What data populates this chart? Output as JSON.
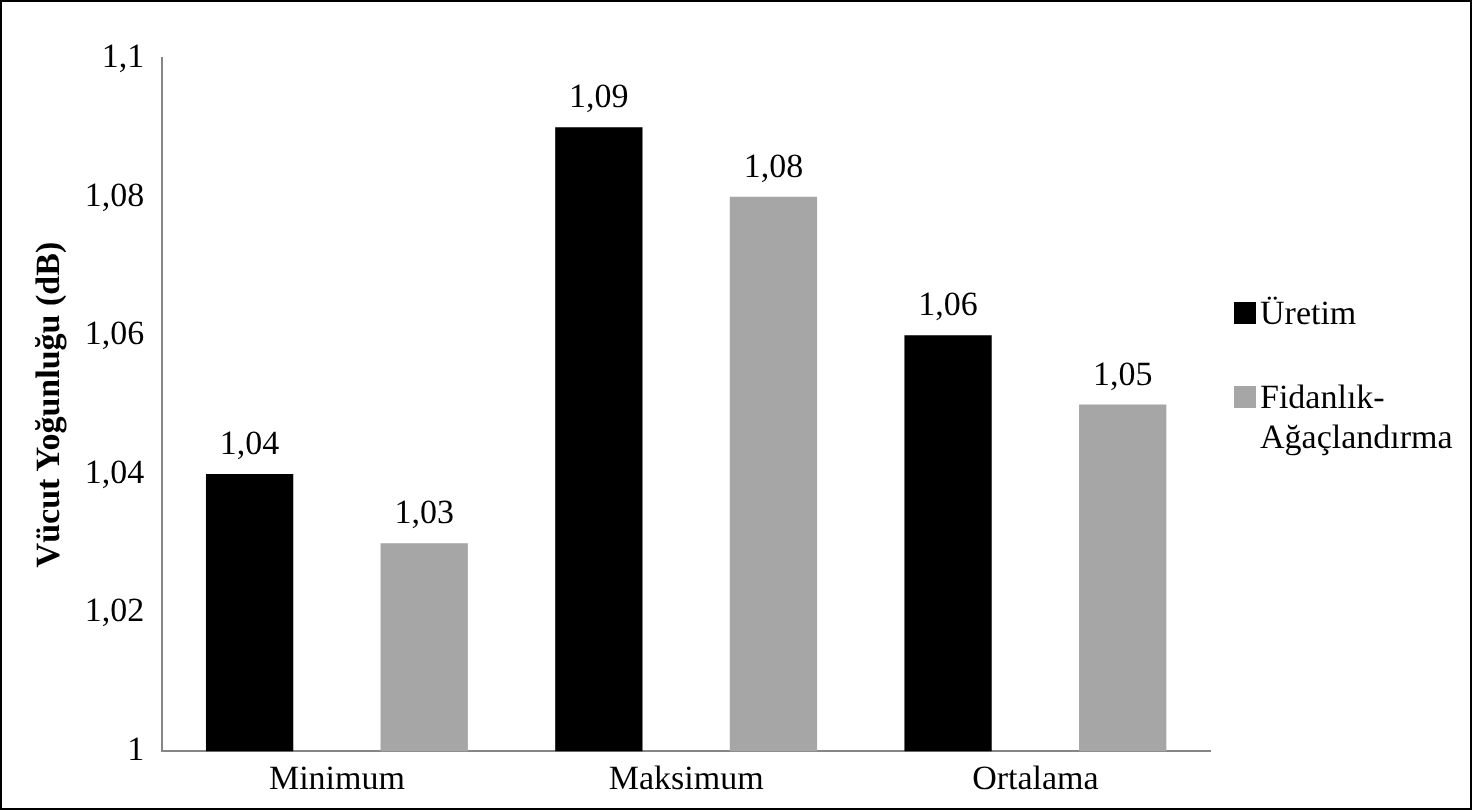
{
  "chart_data": {
    "type": "bar",
    "ylabel": "Vücut Yoğunluğu (dB)",
    "categories": [
      "Minimum",
      "Maksimum",
      "Ortalama"
    ],
    "series": [
      {
        "name": "Üretim",
        "color": "#000000",
        "values": [
          1.04,
          1.09,
          1.06
        ],
        "value_labels": [
          "1,04",
          "1,09",
          "1,06"
        ]
      },
      {
        "name": "Fidanlık-Ağaçlandırma",
        "color": "#a6a6a6",
        "values": [
          1.03,
          1.08,
          1.05
        ],
        "value_labels": [
          "1,03",
          "1,08",
          "1,05"
        ]
      }
    ],
    "ylim": [
      1,
      1.1
    ],
    "yticks": [
      1,
      {
        "value": 1.02,
        "label": "1,02"
      },
      {
        "value": 1.04,
        "label": "1,04"
      },
      {
        "value": 1.06,
        "label": "1,06"
      },
      {
        "value": 1.08,
        "label": "1,08"
      },
      {
        "value": 1.1,
        "label": "1,1"
      }
    ],
    "grid": false,
    "legend": "right"
  }
}
